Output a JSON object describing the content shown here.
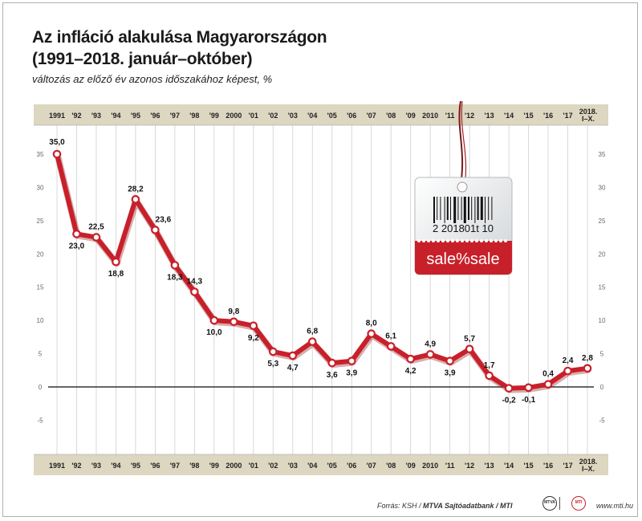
{
  "header": {
    "title_line1": "Az infláció alakulása Magyarországon",
    "title_line2": "(1991–2018. január–október)",
    "subtitle": "változás az előző év azonos időszakához képest, %"
  },
  "price_tag": {
    "barcode_number": "2 201801t 10",
    "banner_text": "sale%sale"
  },
  "footer": {
    "source_prefix": "Forrás: KSH / ",
    "source_bold": "MTVA Sajtóadatbank / MTI",
    "logo1": "MTVA",
    "logo2": "MTI",
    "url": "www.mti.hu"
  },
  "colors": {
    "line": "#c8202a",
    "band": "#ddd6c0",
    "grid": "#cfcfcf",
    "axis": "#333333"
  },
  "chart_data": {
    "type": "line",
    "x": [
      "1991",
      "'92",
      "'93",
      "'94",
      "'95",
      "'96",
      "'97",
      "'98",
      "'99",
      "2000",
      "'01",
      "'02",
      "'03",
      "'04",
      "'05",
      "'06",
      "'07",
      "'08",
      "'09",
      "2010",
      "'11",
      "'12",
      "'13",
      "'14",
      "'15",
      "'16",
      "'17",
      "2018. I–X."
    ],
    "values": [
      35.0,
      23.0,
      22.5,
      18.8,
      28.2,
      23.6,
      18.3,
      14.3,
      10.0,
      9.8,
      9.2,
      5.3,
      4.7,
      6.8,
      3.6,
      3.9,
      8.0,
      6.1,
      4.2,
      4.9,
      3.9,
      5.7,
      1.7,
      -0.2,
      -0.1,
      0.4,
      2.4,
      2.8
    ],
    "labels": [
      "35,0",
      "23,0",
      "22,5",
      "18,8",
      "28,2",
      "23,6",
      "18,3",
      "14,3",
      "10,0",
      "9,8",
      "9,2",
      "5,3",
      "4,7",
      "6,8",
      "3,6",
      "3,9",
      "8,0",
      "6,1",
      "4,2",
      "4,9",
      "3,9",
      "5,7",
      "1,7",
      "-0,2",
      "-0,1",
      "0,4",
      "2,4",
      "2,8"
    ],
    "yticks": [
      35,
      30,
      25,
      20,
      15,
      10,
      5,
      0,
      -5
    ],
    "ytick_labels": [
      "35",
      "30",
      "25",
      "20",
      "15",
      "10",
      "5",
      "0",
      "-5"
    ],
    "ylim": [
      -7,
      37
    ],
    "grid": true
  }
}
